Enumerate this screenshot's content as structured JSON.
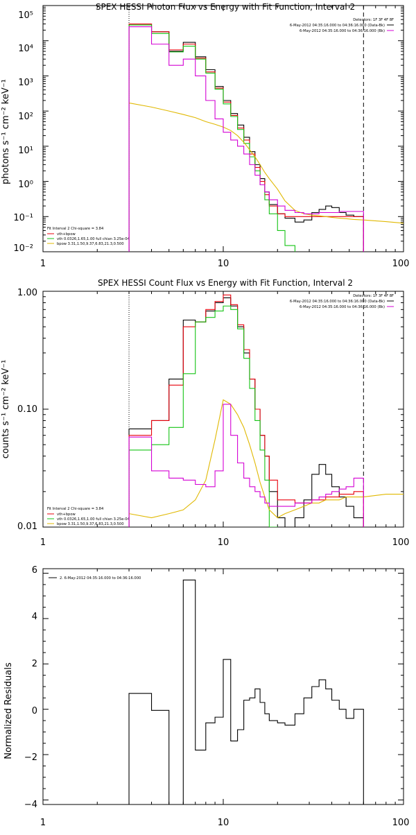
{
  "colors": {
    "data": "#000000",
    "total": "#e8000b",
    "vth": "#15c415",
    "bpow": "#e0b800",
    "bk": "#d400d4"
  },
  "panels": [
    {
      "title": "SPEX HESSI Photon Flux vs Energy with Fit Function, Interval 2",
      "ylabel": "photons s⁻¹ cm⁻² keV⁻¹",
      "ytick_labels": [
        "10⁻²",
        "10⁻¹",
        "10⁰",
        "10¹",
        "10²",
        "10³",
        "10⁴",
        "10⁵"
      ],
      "xtick_labels": [
        "1",
        "10",
        "100"
      ],
      "detectors": "Detectors: 1F 3F 4F 8F",
      "data_legend": [
        "6-May-2012 04:35:16.000 to 04:36:16.000 (Data-Bk)",
        "6-May-2012 04:35:16.000 to 04:36:16.000 (Bk)"
      ],
      "fit_legend": {
        "header": "Fit Interval 2   Chi-square = 3.84",
        "items": [
          "vth+bpow",
          "vth 0.0326,1.65,1.00  full chian 3.25e-04",
          "bpow 3.31,1.50,9.37,6.83,21.3,0.500"
        ]
      }
    },
    {
      "title": "SPEX HESSI Count Flux vs Energy with Fit Function, Interval 2",
      "ylabel": "counts s⁻¹ cm⁻² keV⁻¹",
      "ytick_labels": [
        "0.01",
        "0.10",
        "1.00"
      ],
      "xtick_labels": [
        "1",
        "10",
        "100"
      ],
      "detectors": "Detectors: 1F 3F 4F 8F",
      "data_legend": [
        "6-May-2012 04:35:16.000 to 04:36:16.000 (Data-Bk)",
        "6-May-2012 04:35:16.000 to 04:36:16.000 (Bk)"
      ],
      "fit_legend": {
        "header": "Fit Interval 2   Chi-square = 3.84",
        "items": [
          "vth+bpow",
          "vth 0.0326,1.65,1.00  full chian 3.25e-04",
          "bpow 3.31,1.50,9.37,6.83,21.3,0.500"
        ]
      }
    },
    {
      "title": "",
      "ylabel": "Normalized Residuals",
      "ytick_labels": [
        "−4",
        "−2",
        "0",
        "2",
        "4",
        "6"
      ],
      "xtick_labels": [
        "1",
        "10",
        "100"
      ],
      "legend": "2. 6-May-2012 04:35:16.000 to 04:36:16.000"
    }
  ],
  "chart_data": [
    {
      "type": "line",
      "title": "SPEX HESSI Photon Flux vs Energy with Fit Function, Interval 2",
      "xlabel": "",
      "ylabel": "photons s⁻¹ cm⁻² keV⁻¹",
      "xscale": "log",
      "yscale": "log",
      "xlim": [
        1,
        100
      ],
      "ylim": [
        0.01,
        100000
      ],
      "fit_range": [
        3,
        60
      ],
      "bin_edges": [
        3,
        4,
        5,
        6,
        7,
        8,
        9,
        10,
        11,
        12,
        13,
        14,
        15,
        16,
        17,
        18,
        20,
        22,
        25,
        28,
        31,
        34,
        37,
        40,
        44,
        48,
        53,
        60
      ],
      "series": [
        {
          "name": "6-May-2012 04:35:16.000 to 04:36:16.000 (Data-Bk)",
          "color": "data",
          "values": [
            30000,
            18000,
            5000,
            9000,
            3500,
            1500,
            500,
            200,
            85,
            40,
            18,
            7,
            3,
            1.2,
            0.5,
            0.22,
            0.12,
            0.09,
            0.07,
            0.08,
            0.13,
            0.16,
            0.2,
            0.18,
            0.13,
            0.11,
            0.1
          ]
        },
        {
          "name": "vth+bpow",
          "color": "total",
          "values": [
            30000,
            18000,
            5500,
            8000,
            3200,
            1300,
            450,
            180,
            75,
            33,
            15,
            6,
            2.5,
            1,
            0.42,
            0.2,
            0.12,
            0.1,
            0.1,
            0.1,
            0.1,
            0.1,
            0.1,
            0.1,
            0.1,
            0.1,
            0.1
          ]
        },
        {
          "name": "vth 0.0326,1.65,1.00  full chian 3.25e-04",
          "color": "vth",
          "values": [
            28000,
            16000,
            4800,
            7000,
            3000,
            1200,
            420,
            160,
            70,
            30,
            12,
            5,
            2,
            0.8,
            0.3,
            0.12,
            0.04,
            0.015,
            0.008
          ]
        },
        {
          "name": "bpow 3.31,1.50,9.37,6.83,21.3,0.500",
          "color": "bpow",
          "points": [
            [
              3,
              170
            ],
            [
              4,
              130
            ],
            [
              5,
              100
            ],
            [
              6,
              80
            ],
            [
              7,
              65
            ],
            [
              8,
              50
            ],
            [
              9,
              42
            ],
            [
              10,
              35
            ],
            [
              11,
              28
            ],
            [
              12,
              20
            ],
            [
              13,
              13
            ],
            [
              14,
              8
            ],
            [
              15,
              5
            ],
            [
              16,
              3
            ],
            [
              17,
              1.8
            ],
            [
              18,
              1.2
            ],
            [
              20,
              0.6
            ],
            [
              22,
              0.28
            ],
            [
              25,
              0.15
            ],
            [
              28,
              0.12
            ],
            [
              31,
              0.11
            ],
            [
              34,
              0.105
            ],
            [
              37,
              0.1
            ],
            [
              40,
              0.095
            ],
            [
              44,
              0.09
            ],
            [
              48,
              0.087
            ],
            [
              53,
              0.083
            ],
            [
              60,
              0.08
            ],
            [
              80,
              0.072
            ],
            [
              100,
              0.065
            ]
          ]
        },
        {
          "name": "6-May-2012 04:35:16.000 to 04:36:16.000 (Bk)",
          "color": "bk",
          "values": [
            25000,
            8000,
            2000,
            3000,
            1000,
            200,
            60,
            25,
            15,
            10,
            6,
            3,
            1.5,
            0.8,
            0.5,
            0.3,
            0.2,
            0.15,
            0.13,
            0.12,
            0.12,
            0.13,
            0.13,
            0.13,
            0.14,
            0.14,
            0.14
          ]
        }
      ]
    },
    {
      "type": "line",
      "title": "SPEX HESSI Count Flux vs Energy with Fit Function, Interval 2",
      "xlabel": "",
      "ylabel": "counts s⁻¹ cm⁻² keV⁻¹",
      "xscale": "log",
      "yscale": "log",
      "xlim": [
        1,
        100
      ],
      "ylim": [
        0.01,
        1.0
      ],
      "fit_range": [
        3,
        60
      ],
      "bin_edges": [
        3,
        4,
        5,
        6,
        7,
        8,
        9,
        10,
        11,
        12,
        13,
        14,
        15,
        16,
        17,
        18,
        20,
        22,
        25,
        28,
        31,
        34,
        37,
        40,
        44,
        48,
        53,
        60
      ],
      "series": [
        {
          "name": "6-May-2012 04:35:16.000 to 04:36:16.000 (Data-Bk)",
          "color": "data",
          "values": [
            0.068,
            0.08,
            0.18,
            0.57,
            0.55,
            0.68,
            0.8,
            0.88,
            0.75,
            0.5,
            0.3,
            0.18,
            0.1,
            0.06,
            0.04,
            0.02,
            0.012,
            0.01,
            0.012,
            0.017,
            0.028,
            0.034,
            0.028,
            0.022,
            0.018,
            0.015,
            0.012
          ]
        },
        {
          "name": "vth+bpow",
          "color": "total",
          "values": [
            0.06,
            0.08,
            0.16,
            0.5,
            0.55,
            0.7,
            0.82,
            0.93,
            0.77,
            0.52,
            0.32,
            0.18,
            0.1,
            0.06,
            0.04,
            0.025,
            0.017,
            0.017,
            0.016,
            0.016,
            0.017,
            0.017,
            0.018,
            0.018,
            0.019,
            0.019,
            0.02
          ]
        },
        {
          "name": "vth 0.0326,1.65,1.00  full chian 3.25e-04",
          "color": "vth",
          "values": [
            0.045,
            0.05,
            0.07,
            0.2,
            0.55,
            0.6,
            0.68,
            0.75,
            0.7,
            0.48,
            0.27,
            0.15,
            0.08,
            0.045,
            0.025,
            0.01
          ]
        },
        {
          "name": "bpow 3.31,1.50,9.37,6.83,21.3,0.500",
          "color": "bpow",
          "points": [
            [
              3,
              0.013
            ],
            [
              4,
              0.012
            ],
            [
              5,
              0.013
            ],
            [
              6,
              0.014
            ],
            [
              7,
              0.017
            ],
            [
              8,
              0.025
            ],
            [
              9,
              0.055
            ],
            [
              10,
              0.12
            ],
            [
              11,
              0.11
            ],
            [
              12,
              0.09
            ],
            [
              13,
              0.07
            ],
            [
              14,
              0.05
            ],
            [
              15,
              0.035
            ],
            [
              16,
              0.024
            ],
            [
              17,
              0.018
            ],
            [
              18,
              0.014
            ],
            [
              20,
              0.012
            ],
            [
              22,
              0.013
            ],
            [
              25,
              0.014
            ],
            [
              28,
              0.015
            ],
            [
              31,
              0.016
            ],
            [
              34,
              0.016
            ],
            [
              37,
              0.017
            ],
            [
              40,
              0.017
            ],
            [
              44,
              0.017
            ],
            [
              48,
              0.018
            ],
            [
              53,
              0.018
            ],
            [
              60,
              0.018
            ],
            [
              80,
              0.019
            ],
            [
              100,
              0.019
            ]
          ]
        },
        {
          "name": "6-May-2012 04:35:16.000 to 04:36:16.000 (Bk)",
          "color": "bk",
          "values": [
            0.058,
            0.03,
            0.026,
            0.025,
            0.023,
            0.022,
            0.03,
            0.11,
            0.06,
            0.035,
            0.026,
            0.022,
            0.02,
            0.018,
            0.016,
            0.015,
            0.015,
            0.015,
            0.016,
            0.016,
            0.017,
            0.018,
            0.019,
            0.02,
            0.021,
            0.022,
            0.026
          ]
        }
      ]
    },
    {
      "type": "line",
      "title": "",
      "xlabel": "",
      "ylabel": "Normalized Residuals",
      "xscale": "log",
      "yscale": "linear",
      "xlim": [
        1,
        100
      ],
      "ylim": [
        -4.2,
        6.2
      ],
      "bin_edges": [
        3,
        4,
        5,
        6,
        7,
        8,
        9,
        10,
        11,
        12,
        13,
        14,
        15,
        16,
        17,
        18,
        20,
        22,
        25,
        28,
        31,
        34,
        37,
        40,
        44,
        48,
        53,
        60
      ],
      "series": [
        {
          "name": "2. 6-May-2012 04:35:16.000 to 04:36:16.000",
          "color": "data",
          "values": [
            0.7,
            -0.05,
            -4.2,
            5.7,
            -1.8,
            -0.6,
            -0.35,
            2.2,
            -1.4,
            -0.9,
            0.4,
            0.5,
            0.9,
            0.3,
            -0.2,
            -0.5,
            -0.6,
            -0.7,
            -0.2,
            0.5,
            1.0,
            1.3,
            0.9,
            0.4,
            0.0,
            -0.4,
            0.0
          ]
        }
      ]
    }
  ]
}
